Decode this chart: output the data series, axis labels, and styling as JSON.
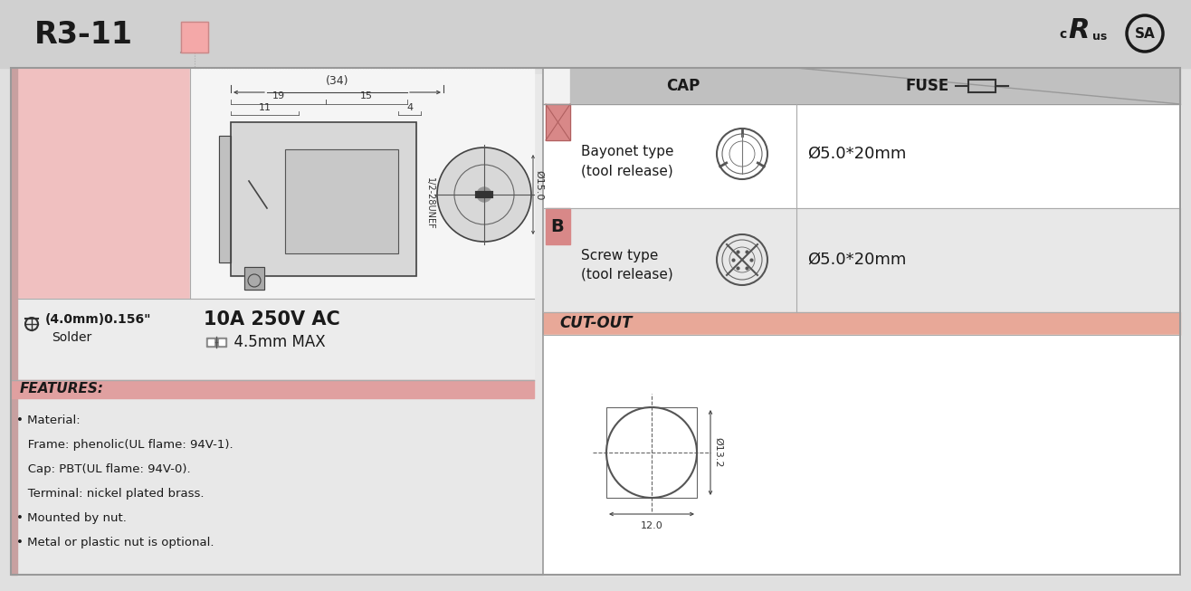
{
  "title": "R3-11",
  "dark": "#1a1a1a",
  "gray_header": "#cccccc",
  "gray_light": "#e0e0e0",
  "gray_med": "#b8b8b8",
  "pink_light": "#f0c8c8",
  "pink_salmon": "#e8a898",
  "pink_strong": "#d08080",
  "white": "#ffffff",
  "bg": "#e8e8e8",
  "cap_label": "CAP",
  "fuse_label": "FUSE",
  "row1_cap": "Bayonet type\n(tool release)",
  "row2_cap": "Screw type\n(tool release)",
  "row1_fuse": "Ø5.0*20mm",
  "row2_fuse": "Ø5.0*20mm",
  "cutout_label": "CUT-OUT",
  "dim_34": "(34)",
  "dim_19": "19",
  "dim_15": "15",
  "dim_11": "11",
  "dim_4": "4",
  "dim_15_0": "Ø15.0",
  "thread_label": "1/2-28UNEF",
  "terminal_label": "(4.0mm)0.156\"",
  "terminal_sub": "Solder",
  "voltage_label": "10A 250V AC",
  "wire_label": "4.5mm MAX",
  "features_title": "FEATURES:",
  "feat1": "• Material:",
  "feat2": "   Frame: phenolic(UL flame: 94V-1).",
  "feat3": "   Cap: PBT(UL flame: 94V-0).",
  "feat4": "   Terminal: nickel plated brass.",
  "feat5": "• Mounted by nut.",
  "feat6": "• Metal or plastic nut is optional.",
  "cutout_dim_d": "Ø13.2",
  "cutout_dim_w": "12.0"
}
